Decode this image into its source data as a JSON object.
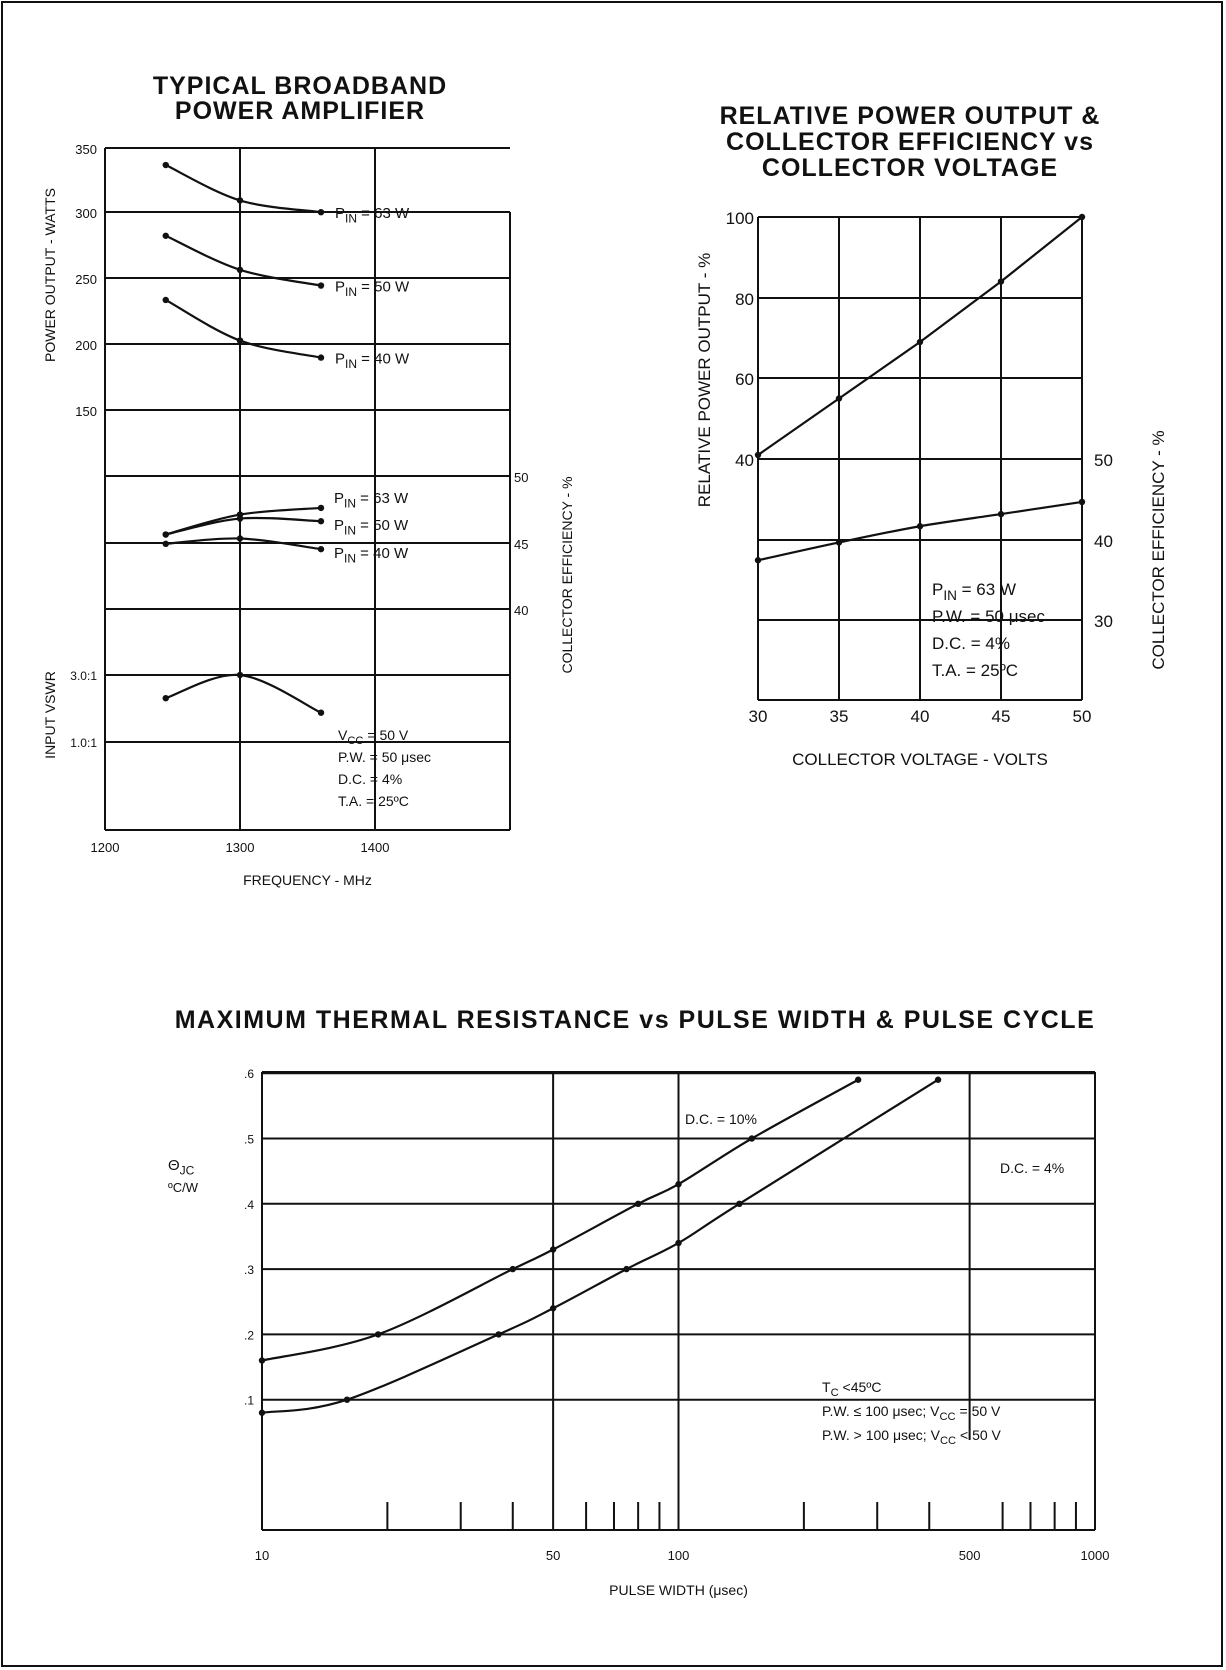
{
  "chart_data": [
    {
      "type": "line",
      "title_lines": [
        "TYPICAL BROADBAND",
        "POWER AMPLIFIER"
      ],
      "xlabel": "FREQUENCY - MHz",
      "xlim": [
        1200,
        1500
      ],
      "x_ticks": [
        "1200",
        "1300",
        "1400"
      ],
      "grid": true,
      "panels": [
        {
          "name": "power",
          "ylabel": "POWER OUTPUT - WATTS",
          "ylim": [
            100,
            350
          ],
          "y_ticks": [
            "350",
            "300",
            "250",
            "200",
            "150"
          ],
          "series": [
            {
              "label": "PIN = 63 W",
              "label_main": "P",
              "label_sub": "IN",
              "label_rest": "= 63 W",
              "x": [
                1245,
                1300,
                1360
              ],
              "y": [
                337,
                310,
                301
              ]
            },
            {
              "label": "PIN = 50 W",
              "label_main": "P",
              "label_sub": "IN",
              "label_rest": "= 50 W",
              "x": [
                1245,
                1300,
                1360
              ],
              "y": [
                283,
                257,
                245
              ]
            },
            {
              "label": "PIN = 40 W",
              "label_main": "P",
              "label_sub": "IN",
              "label_rest": "= 40 W",
              "x": [
                1245,
                1300,
                1360
              ],
              "y": [
                234,
                203,
                190
              ]
            }
          ]
        },
        {
          "name": "efficiency",
          "ylabel_right": "COLLECTOR EFFICIENCY - %",
          "ylim": [
            35,
            50
          ],
          "y_ticks_right": [
            "50",
            "45",
            "40"
          ],
          "series": [
            {
              "label": "PIN = 63 W",
              "label_main": "P",
              "label_sub": "IN",
              "label_rest": "= 63 W",
              "x": [
                1245,
                1300,
                1360
              ],
              "y": [
                45.6,
                47.1,
                47.6
              ]
            },
            {
              "label": "PIN = 50 W",
              "label_main": "P",
              "label_sub": "IN",
              "label_rest": "= 50 W",
              "x": [
                1245,
                1300,
                1360
              ],
              "y": [
                45.6,
                46.8,
                46.6
              ]
            },
            {
              "label": "PIN = 40 W",
              "label_main": "P",
              "label_sub": "IN",
              "label_rest": "= 40 W",
              "x": [
                1245,
                1300,
                1360
              ],
              "y": [
                44.9,
                45.3,
                44.5
              ]
            }
          ]
        },
        {
          "name": "vswr",
          "ylabel": "INPUT VSWR",
          "y_ticks": [
            "3.0:1",
            "1.0:1"
          ],
          "series": [
            {
              "label": "VSWR",
              "x": [
                1245,
                1300,
                1360
              ],
              "y": [
                2.6,
                3.0,
                2.35
              ]
            }
          ],
          "notes": [
            {
              "main": "V",
              "sub": "CC",
              "rest": "= 50 V"
            },
            {
              "main": "P.W. = 50 μsec"
            },
            {
              "main": "D.C. = 4%"
            },
            {
              "main": "T.A. = 25ºC"
            }
          ]
        }
      ]
    },
    {
      "type": "line",
      "title_lines": [
        "RELATIVE POWER OUTPUT &",
        "COLLECTOR EFFICIENCY vs",
        "COLLECTOR VOLTAGE"
      ],
      "xlabel": "COLLECTOR VOLTAGE - VOLTS",
      "ylabel_left": "RELATIVE POWER OUTPUT - %",
      "ylabel_right": "COLLECTOR EFFICIENCY - %",
      "x_ticks": [
        30,
        35,
        40,
        45,
        50
      ],
      "y_ticks_left": [
        100,
        80,
        60,
        40
      ],
      "y_ticks_right": [
        50,
        40,
        30
      ],
      "xlim": [
        30,
        50
      ],
      "grid": true,
      "series": [
        {
          "name": "relative_power",
          "axis": "left",
          "ylim": [
            20,
            100
          ],
          "x": [
            30,
            35,
            40,
            45,
            50
          ],
          "y": [
            41,
            55,
            69,
            84,
            100
          ]
        },
        {
          "name": "efficiency",
          "axis": "right",
          "ylim": [
            20,
            55
          ],
          "x": [
            30,
            35,
            40,
            45,
            50
          ],
          "y": [
            37.5,
            39.7,
            41.7,
            43.2,
            44.7
          ]
        }
      ],
      "notes": [
        {
          "main": "P",
          "sub": "IN",
          "rest": "= 63 W"
        },
        {
          "main": "P.W. = 50 μsec"
        },
        {
          "main": "D.C. = 4%"
        },
        {
          "main": "T.A. = 25ºC"
        }
      ]
    },
    {
      "type": "line",
      "title": "MAXIMUM THERMAL RESISTANCE vs PULSE WIDTH & PULSE CYCLE",
      "xlabel": "PULSE WIDTH (μsec)",
      "ylabel_line1": "ΘJC",
      "ylabel_line1_main": "Θ",
      "ylabel_line1_sub": "JC",
      "ylabel_line2": "ºC/W",
      "xscale": "log",
      "xlim": [
        10,
        1000
      ],
      "ylim": [
        0,
        0.7
      ],
      "x_ticks": [
        "10",
        "50",
        "100",
        "500",
        "1000"
      ],
      "y_ticks": [
        ".6",
        ".5",
        ".4",
        ".3",
        ".2",
        ".1"
      ],
      "grid": true,
      "series": [
        {
          "label": "D.C. = 10%",
          "x": [
            10,
            19,
            40,
            50,
            80,
            100,
            150,
            270
          ],
          "y": [
            0.16,
            0.2,
            0.3,
            0.33,
            0.4,
            0.43,
            0.5,
            0.59
          ]
        },
        {
          "label": "D.C. = 4%",
          "x": [
            10,
            16,
            37,
            50,
            75,
            100,
            140,
            420
          ],
          "y": [
            0.08,
            0.1,
            0.2,
            0.24,
            0.3,
            0.34,
            0.4,
            0.59
          ]
        }
      ],
      "notes": [
        {
          "main": "T",
          "sub": "C",
          "rest": "<45ºC"
        },
        {
          "main": "P.W. ≤ 100 μsec; V",
          "sub": "CC",
          "rest": "= 50 V"
        },
        {
          "main": "P.W. > 100 μsec; V",
          "sub": "CC",
          "rest": "< 50 V"
        }
      ]
    }
  ]
}
